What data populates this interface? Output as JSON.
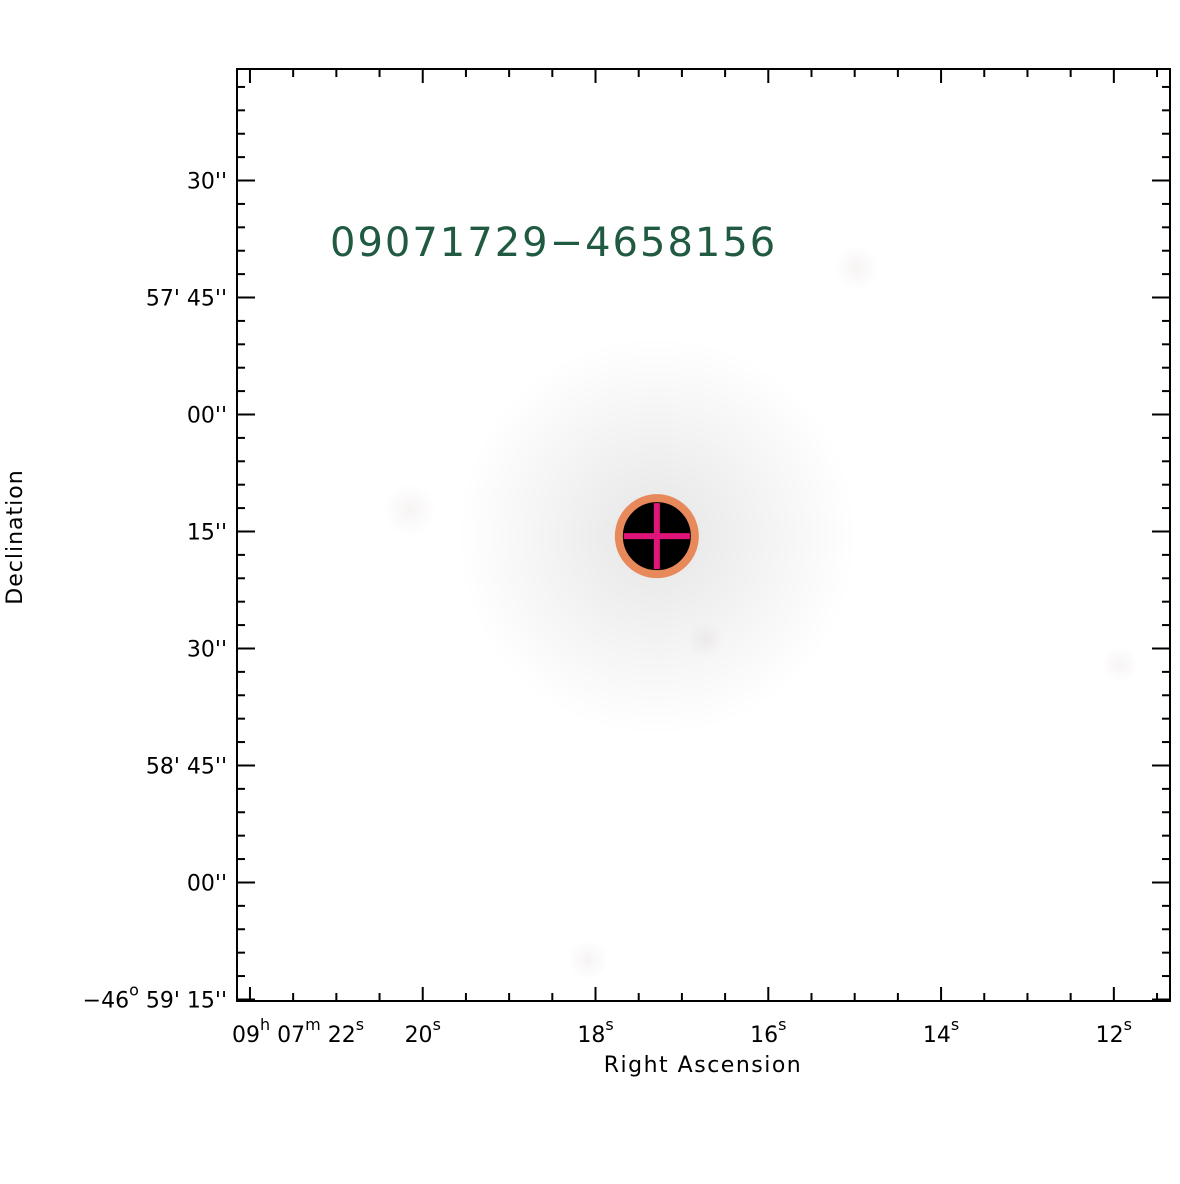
{
  "object_label": "09071729−4658156",
  "xlabel": "Right Ascension",
  "ylabel": "Declination",
  "x_ticks": [
    {
      "h": "09",
      "m": "07",
      "s": "22",
      "ra_s": 22
    },
    {
      "s": "20",
      "ra_s": 20
    },
    {
      "s": "18",
      "ra_s": 18
    },
    {
      "s": "16",
      "ra_s": 16
    },
    {
      "s": "14",
      "ra_s": 14
    },
    {
      "s": "12",
      "ra_s": 12
    }
  ],
  "x_range_s": [
    22.15,
    11.35
  ],
  "y_ticks": [
    {
      "arcsec": 30,
      "label": "30''"
    },
    {
      "arcmin": "57'",
      "arcsec": 45,
      "label": "45''"
    },
    {
      "arcsec": 0,
      "label": "00''"
    },
    {
      "arcsec": 15,
      "label": "15''"
    },
    {
      "arcsec": 30,
      "label": "30''"
    },
    {
      "arcmin": "58'",
      "arcsec": 45,
      "label": "45''"
    },
    {
      "arcsec": 0,
      "label": "00''"
    },
    {
      "deg": "−46",
      "arcmin": "59'",
      "arcsec": 15,
      "label": "15''"
    }
  ],
  "y_offsets_arcsec": [
    -30,
    -15,
    0,
    15,
    30,
    45,
    60,
    75
  ],
  "y_range_arcsec": [
    -44.3,
    75.2
  ],
  "source": {
    "ra_s": 17.29,
    "dec_offset_arcsec": 15.6
  },
  "colors": {
    "label": "#1f5a41",
    "circle": "#e8895c",
    "cross": "#e0157a",
    "axes": "#000000"
  }
}
